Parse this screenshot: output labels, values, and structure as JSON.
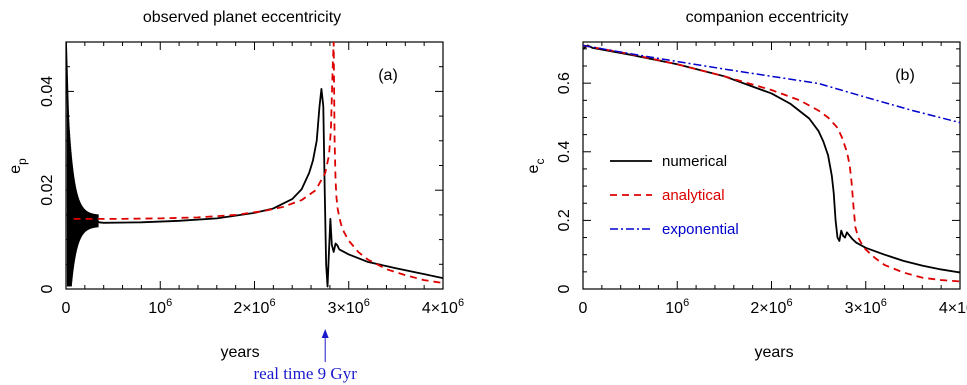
{
  "colors": {
    "numerical": "#000000",
    "analytical": "#dd0000",
    "exponential": "#0000cc",
    "annotation": "#1a1acc"
  },
  "chart_data": [
    {
      "type": "line",
      "title": "observed planet eccentricity",
      "panel_label": "(a)",
      "xlabel": "years",
      "ylabel": "e_p",
      "ylabel_main": "e",
      "ylabel_sub": "p",
      "xlim": [
        0,
        4000000
      ],
      "ylim": [
        0,
        0.05
      ],
      "x_ticks": [
        {
          "value": 0,
          "mantissa": "0",
          "exp": ""
        },
        {
          "value": 1000000,
          "mantissa": "10",
          "exp": "6"
        },
        {
          "value": 2000000,
          "mantissa": "2×10",
          "exp": "6"
        },
        {
          "value": 3000000,
          "mantissa": "3×10",
          "exp": "6"
        },
        {
          "value": 4000000,
          "mantissa": "4×10",
          "exp": "6"
        }
      ],
      "y_ticks": [
        {
          "value": 0,
          "label": "0"
        },
        {
          "value": 0.02,
          "label": "0.02"
        },
        {
          "value": 0.04,
          "label": "0.04"
        }
      ],
      "annotation": {
        "text": "real time 9 Gyr",
        "x": 2750000
      },
      "series": [
        {
          "key": "numerical",
          "x": [
            0,
            15000,
            30000,
            50000,
            80000,
            120000,
            200000,
            400000,
            800000,
            1200000,
            1600000,
            2000000,
            2200000,
            2400000,
            2500000,
            2580000,
            2620000,
            2660000,
            2690000,
            2710000,
            2730000,
            2745000,
            2760000,
            2775000,
            2790000,
            2805000,
            2820000,
            2840000,
            2860000,
            2880000,
            2900000,
            2950000,
            3000000,
            3200000,
            3500000,
            3800000,
            4000000
          ],
          "y": [
            0.05,
            0.04,
            0.03,
            0.021,
            0.016,
            0.0145,
            0.0138,
            0.0134,
            0.0135,
            0.0138,
            0.0143,
            0.0154,
            0.0163,
            0.0182,
            0.0202,
            0.0235,
            0.026,
            0.03,
            0.037,
            0.0405,
            0.037,
            0.02,
            0.005,
            0.0005,
            0.0075,
            0.0142,
            0.009,
            0.0075,
            0.0092,
            0.0088,
            0.008,
            0.0075,
            0.007,
            0.0055,
            0.0042,
            0.003,
            0.0022
          ]
        },
        {
          "key": "analytical",
          "x": [
            80000,
            200000,
            600000,
            1000000,
            1400000,
            1800000,
            2100000,
            2300000,
            2500000,
            2650000,
            2750000,
            2790000,
            2810000,
            2830000,
            2840000,
            2850000,
            2860000,
            2870000,
            2880000,
            2900000,
            2920000,
            2950000,
            3000000,
            3100000,
            3200000,
            3400000,
            3600000,
            3800000,
            4000000
          ],
          "y": [
            0.0142,
            0.0142,
            0.0142,
            0.0143,
            0.0145,
            0.015,
            0.0158,
            0.0166,
            0.018,
            0.02,
            0.0235,
            0.027,
            0.032,
            0.045,
            0.05,
            0.03,
            0.022,
            0.0185,
            0.0165,
            0.0145,
            0.013,
            0.0115,
            0.0098,
            0.0075,
            0.006,
            0.004,
            0.0028,
            0.0018,
            0.0012
          ]
        }
      ],
      "oscillation": {
        "x_start": 15000,
        "x_end": 340000,
        "y_center": 0.0138,
        "amp_start": 0.024,
        "amp_end": 0.0012,
        "min_y": 0.0005
      },
      "legend": []
    },
    {
      "type": "line",
      "title": "companion eccentricity",
      "panel_label": "(b)",
      "xlabel": "years",
      "ylabel": "e_c",
      "ylabel_main": "e",
      "ylabel_sub": "c",
      "xlim": [
        0,
        4000000
      ],
      "ylim": [
        0,
        0.72
      ],
      "x_ticks": [
        {
          "value": 0,
          "mantissa": "0",
          "exp": ""
        },
        {
          "value": 1000000,
          "mantissa": "10",
          "exp": "6"
        },
        {
          "value": 2000000,
          "mantissa": "2×10",
          "exp": "6"
        },
        {
          "value": 3000000,
          "mantissa": "3×10",
          "exp": "6"
        },
        {
          "value": 4000000,
          "mantissa": "4×10",
          "exp": "6"
        }
      ],
      "y_ticks": [
        {
          "value": 0,
          "label": "0"
        },
        {
          "value": 0.2,
          "label": "0.2"
        },
        {
          "value": 0.4,
          "label": "0.4"
        },
        {
          "value": 0.6,
          "label": "0.6"
        }
      ],
      "series": [
        {
          "key": "numerical",
          "name": "numerical",
          "x": [
            0,
            50000,
            100000,
            500000,
            1000000,
            1500000,
            2000000,
            2200000,
            2400000,
            2500000,
            2550000,
            2600000,
            2640000,
            2660000,
            2680000,
            2700000,
            2720000,
            2740000,
            2760000,
            2780000,
            2800000,
            2830000,
            2860000,
            2900000,
            3000000,
            3200000,
            3400000,
            3600000,
            3800000,
            4000000
          ],
          "y": [
            0.7,
            0.71,
            0.703,
            0.683,
            0.655,
            0.62,
            0.57,
            0.54,
            0.497,
            0.46,
            0.43,
            0.39,
            0.33,
            0.28,
            0.2,
            0.15,
            0.14,
            0.17,
            0.155,
            0.15,
            0.165,
            0.155,
            0.145,
            0.135,
            0.12,
            0.1,
            0.082,
            0.068,
            0.057,
            0.048
          ]
        },
        {
          "key": "analytical",
          "name": "analytical",
          "x": [
            0,
            500000,
            1000000,
            1500000,
            2000000,
            2300000,
            2500000,
            2600000,
            2700000,
            2750000,
            2800000,
            2830000,
            2850000,
            2870000,
            2890000,
            2920000,
            2960000,
            3000000,
            3100000,
            3200000,
            3400000,
            3600000,
            3800000,
            4000000
          ],
          "y": [
            0.71,
            0.685,
            0.655,
            0.62,
            0.58,
            0.55,
            0.52,
            0.5,
            0.47,
            0.44,
            0.4,
            0.36,
            0.31,
            0.24,
            0.18,
            0.15,
            0.13,
            0.115,
            0.09,
            0.07,
            0.048,
            0.033,
            0.026,
            0.022
          ]
        },
        {
          "key": "exponential",
          "name": "exponential",
          "x": [
            0,
            500000,
            1000000,
            1500000,
            2000000,
            2500000,
            3000000,
            3500000,
            4000000
          ],
          "y": [
            0.71,
            0.686,
            0.663,
            0.641,
            0.62,
            0.599,
            0.559,
            0.52,
            0.485
          ]
        }
      ],
      "legend": [
        {
          "key": "numerical",
          "label": "numerical"
        },
        {
          "key": "analytical",
          "label": "analytical"
        },
        {
          "key": "exponential",
          "label": "exponential"
        }
      ]
    }
  ]
}
